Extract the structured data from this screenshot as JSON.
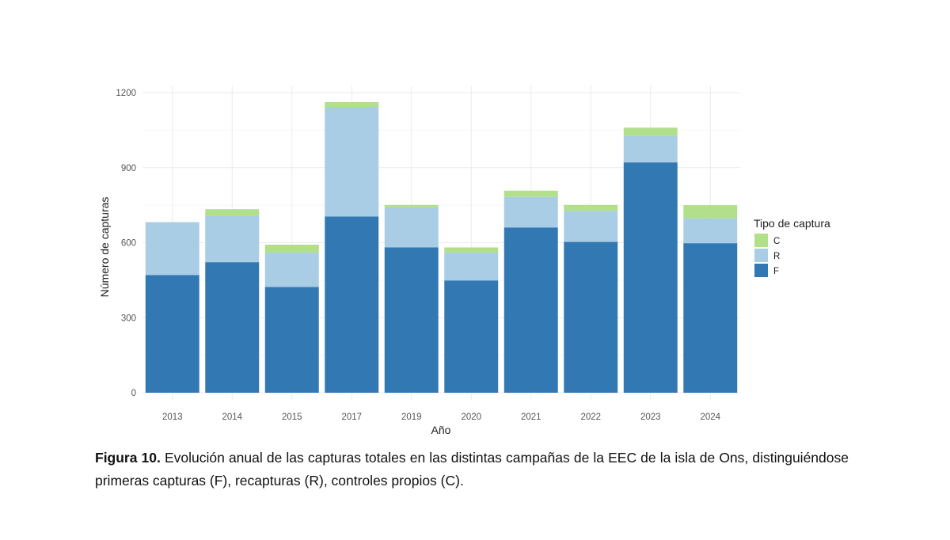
{
  "chart_data": {
    "type": "bar",
    "stacked": true,
    "xlabel": "Año",
    "ylabel": "Número de capturas",
    "ylim": [
      0,
      1200
    ],
    "yticks": [
      0,
      300,
      600,
      900,
      1200
    ],
    "grid": true,
    "legend_title": "Tipo de captura",
    "legend_position": "right",
    "categories": [
      "2013",
      "2014",
      "2015",
      "2017",
      "2019",
      "2020",
      "2021",
      "2022",
      "2023",
      "2024"
    ],
    "series": [
      {
        "name": "F",
        "color": "#3279b4",
        "values": [
          471,
          522,
          423,
          705,
          581,
          449,
          661,
          603,
          921,
          598
        ]
      },
      {
        "name": "R",
        "color": "#a9cde5",
        "values": [
          211,
          186,
          137,
          438,
          161,
          111,
          122,
          124,
          107,
          99
        ]
      },
      {
        "name": "C",
        "color": "#b2df8a",
        "values": [
          0,
          26,
          32,
          19,
          9,
          21,
          25,
          24,
          32,
          53
        ]
      }
    ],
    "legend_order": [
      "C",
      "R",
      "F"
    ]
  },
  "caption": {
    "label": "Figura 10.",
    "text": " Evolución anual de las capturas totales en las distintas campañas de la EEC de la isla de Ons, distinguiéndose primeras capturas (F), recapturas (R), controles propios (C)."
  }
}
